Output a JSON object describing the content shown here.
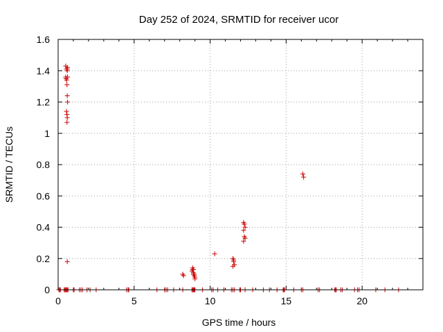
{
  "chart_data": {
    "type": "scatter",
    "title": "Day 252 of 2024, SRMTID for receiver ucor",
    "xlabel": "GPS time / hours",
    "ylabel": "SRMTID / TECUs",
    "xlim": [
      0,
      24
    ],
    "ylim": [
      0,
      1.6
    ],
    "xticks": [
      0,
      5,
      10,
      15,
      20
    ],
    "yticks": [
      0,
      0.2,
      0.4,
      0.6,
      0.8,
      1,
      1.2,
      1.4,
      1.6
    ],
    "xtick_labels": [
      "0",
      "5",
      "10",
      "15",
      "20"
    ],
    "ytick_labels": [
      "0",
      "0.2",
      "0.4",
      "0.6",
      "0.8",
      "1",
      "1.2",
      "1.4",
      "1.6"
    ],
    "grid": true,
    "series": [
      {
        "name": "SRMTID",
        "color": "#cc0000",
        "marker": "plus",
        "x": [
          0.05,
          0.1,
          0.15,
          0.4,
          0.45,
          0.5,
          0.55,
          0.6,
          0.65,
          1.0,
          1.05,
          1.4,
          1.5,
          1.6,
          1.9,
          2.1,
          2.5,
          4.5,
          4.6,
          4.65,
          6.5,
          7.0,
          7.1,
          7.2,
          7.6,
          8.2,
          8.8,
          8.85,
          8.9,
          8.95,
          9.0,
          9.5,
          10.1,
          10.2,
          10.5,
          10.9,
          11.4,
          11.5,
          11.6,
          11.95,
          12.0,
          12.3,
          12.8,
          13.5,
          13.9,
          14.4,
          14.8,
          14.85,
          14.9,
          15.5,
          16.0,
          16.1,
          17.1,
          17.2,
          18.2,
          18.25,
          18.3,
          18.6,
          18.7,
          19.5,
          19.7,
          19.8,
          20.9,
          21.5,
          22.4,
          0.5,
          0.55,
          0.6,
          0.5,
          0.52,
          0.55,
          0.58,
          0.6,
          0.62,
          0.55,
          0.58,
          0.6,
          0.58,
          0.6,
          0.62,
          0.62,
          0.6,
          8.2,
          8.25,
          8.8,
          8.85,
          8.9,
          8.9,
          8.95,
          9.0,
          9.0,
          8.85,
          8.9,
          8.95,
          10.3,
          11.5,
          11.55,
          11.6,
          11.5,
          11.55,
          12.2,
          12.25,
          12.3,
          12.2,
          12.25,
          12.3,
          12.2,
          16.1,
          16.15
        ],
        "y": [
          0,
          0,
          0,
          0,
          0,
          0,
          0,
          0,
          0,
          0,
          0,
          0,
          0,
          0,
          0,
          0,
          0,
          0,
          0,
          0,
          0,
          0,
          0,
          0,
          0,
          0,
          0,
          0,
          0,
          0,
          0,
          0,
          0,
          0,
          0,
          0,
          0,
          0,
          0,
          0,
          0,
          0,
          0,
          0,
          0,
          0,
          0,
          0,
          0,
          0,
          0,
          0,
          0,
          0,
          0,
          0,
          0,
          0,
          0,
          0,
          0,
          0,
          0,
          0,
          0,
          1.43,
          1.41,
          1.4,
          1.36,
          1.35,
          1.34,
          1.31,
          1.24,
          1.2,
          1.14,
          1.12,
          1.1,
          1.07,
          0.18,
          1.42,
          1.36,
          1.41,
          0.1,
          0.09,
          0.12,
          0.13,
          0.11,
          0.1,
          0.09,
          0.08,
          0.07,
          0.14,
          0.13,
          0.1,
          0.23,
          0.2,
          0.18,
          0.16,
          0.15,
          0.19,
          0.43,
          0.42,
          0.4,
          0.38,
          0.34,
          0.33,
          0.31,
          0.74,
          0.72
        ]
      }
    ]
  }
}
